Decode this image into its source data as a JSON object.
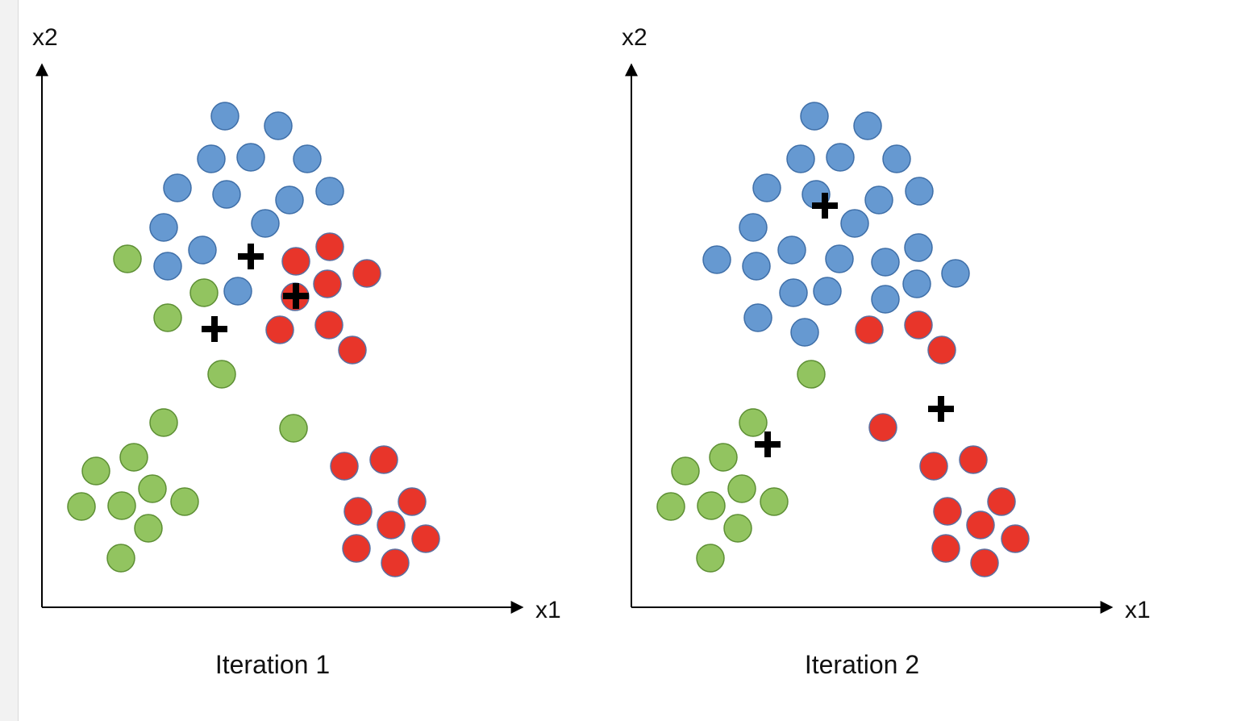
{
  "colors": {
    "blue": "#6699d1",
    "blue_stroke": "#3f6fa8",
    "green": "#92c460",
    "green_stroke": "#5d8f34",
    "red": "#e8352a",
    "red_stroke": "#5b6fa0",
    "centroid": "#000000",
    "axis": "#000000"
  },
  "icons": {
    "centroid": "plus-icon"
  },
  "panels": [
    {
      "caption": "Iteration 1",
      "x_label": "x1",
      "y_label": "x2",
      "points": {
        "blue": [
          [
            279,
            144
          ],
          [
            345,
            156
          ],
          [
            262,
            197
          ],
          [
            311,
            195
          ],
          [
            381,
            197
          ],
          [
            220,
            233
          ],
          [
            281,
            241
          ],
          [
            359,
            248
          ],
          [
            409,
            237
          ],
          [
            203,
            282
          ],
          [
            329,
            277
          ],
          [
            251,
            310
          ],
          [
            208,
            330
          ],
          [
            295,
            361
          ]
        ],
        "green": [
          [
            158,
            321
          ],
          [
            253,
            363
          ],
          [
            208,
            394
          ],
          [
            275,
            464
          ],
          [
            203,
            524
          ],
          [
            364,
            531
          ],
          [
            166,
            567
          ],
          [
            119,
            584
          ],
          [
            189,
            606
          ],
          [
            229,
            622
          ],
          [
            101,
            628
          ],
          [
            151,
            627
          ],
          [
            184,
            655
          ],
          [
            150,
            692
          ]
        ],
        "red": [
          [
            409,
            306
          ],
          [
            367,
            324
          ],
          [
            455,
            339
          ],
          [
            406,
            352
          ],
          [
            366,
            368
          ],
          [
            347,
            409
          ],
          [
            408,
            403
          ],
          [
            437,
            434
          ],
          [
            427,
            578
          ],
          [
            476,
            570
          ],
          [
            511,
            622
          ],
          [
            444,
            634
          ],
          [
            485,
            651
          ],
          [
            528,
            668
          ],
          [
            442,
            680
          ],
          [
            490,
            698
          ]
        ]
      },
      "centroids": [
        [
          311,
          318
        ],
        [
          367,
          367
        ],
        [
          266,
          408
        ]
      ]
    },
    {
      "caption": "Iteration 2",
      "x_label": "x1",
      "y_label": "x2",
      "points": {
        "blue": [
          [
            1010,
            144
          ],
          [
            1076,
            156
          ],
          [
            993,
            197
          ],
          [
            1042,
            195
          ],
          [
            1112,
            197
          ],
          [
            951,
            233
          ],
          [
            1012,
            241
          ],
          [
            1090,
            248
          ],
          [
            1140,
            237
          ],
          [
            934,
            282
          ],
          [
            1060,
            277
          ],
          [
            982,
            310
          ],
          [
            889,
            322
          ],
          [
            938,
            330
          ],
          [
            1041,
            321
          ],
          [
            1098,
            325
          ],
          [
            1139,
            307
          ],
          [
            1185,
            339
          ],
          [
            984,
            363
          ],
          [
            1026,
            361
          ],
          [
            1098,
            371
          ],
          [
            1137,
            352
          ],
          [
            940,
            394
          ],
          [
            998,
            412
          ]
        ],
        "green": [
          [
            1006,
            464
          ],
          [
            934,
            524
          ],
          [
            897,
            567
          ],
          [
            850,
            584
          ],
          [
            920,
            606
          ],
          [
            960,
            622
          ],
          [
            832,
            628
          ],
          [
            882,
            627
          ],
          [
            915,
            655
          ],
          [
            881,
            692
          ]
        ],
        "red": [
          [
            1078,
            409
          ],
          [
            1139,
            403
          ],
          [
            1168,
            434
          ],
          [
            1095,
            530
          ],
          [
            1158,
            578
          ],
          [
            1207,
            570
          ],
          [
            1242,
            622
          ],
          [
            1175,
            634
          ],
          [
            1216,
            651
          ],
          [
            1259,
            668
          ],
          [
            1173,
            680
          ],
          [
            1221,
            698
          ]
        ]
      },
      "centroids": [
        [
          1023,
          255
        ],
        [
          1167,
          507
        ],
        [
          952,
          551
        ]
      ]
    }
  ]
}
